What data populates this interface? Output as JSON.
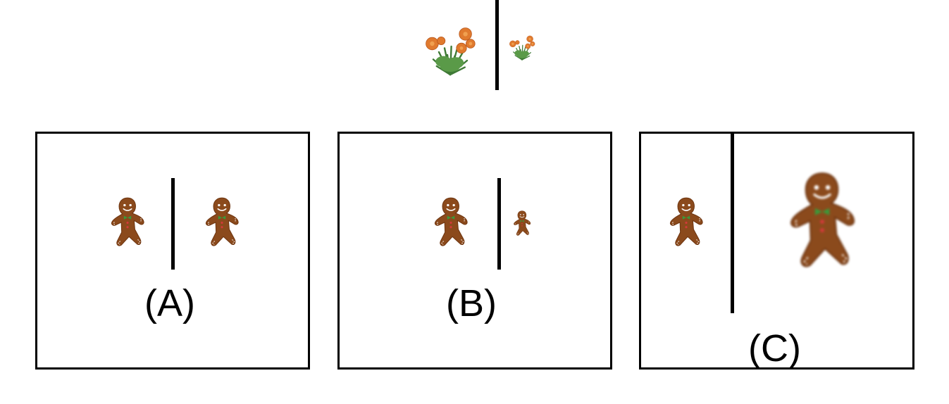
{
  "example": {
    "left_item_icon": "flower-bush-icon",
    "right_item_icon": "flower-bush-icon"
  },
  "panels": [
    {
      "label": "(A)",
      "left_icon": "gingerbread-man-icon",
      "right_icon": "gingerbread-man-icon"
    },
    {
      "label": "(B)",
      "left_icon": "gingerbread-man-icon",
      "right_icon": "gingerbread-man-icon"
    },
    {
      "label": "(C)",
      "left_icon": "gingerbread-man-icon",
      "right_icon": "gingerbread-man-icon"
    }
  ],
  "colors": {
    "cookie": "#8B4A1C",
    "cookie_edge": "#6E3510",
    "icing": "#ffffff",
    "bow": "#3a9a3a",
    "button": "#d23a3a",
    "flower": "#e07a2e",
    "leaf": "#3f7a36",
    "line": "#000000"
  }
}
